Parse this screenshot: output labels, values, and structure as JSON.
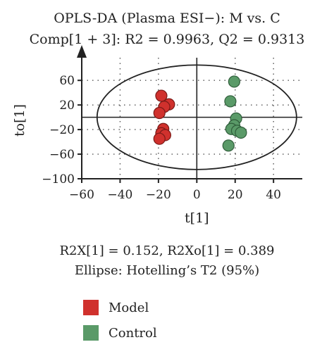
{
  "chart_data": {
    "type": "scatter",
    "title": "OPLS-DA (Plasma ESI−): M vs. C",
    "subtitle": "Comp[1 + 3]: R2 = 0.9963, Q2 = 0.9313",
    "xlabel": "t[1]",
    "ylabel": "to[1]",
    "xlim": [
      -60,
      55
    ],
    "ylim": [
      -100,
      90
    ],
    "x_ticks": [
      -60,
      -40,
      -20,
      0,
      20,
      40
    ],
    "x_tick_labels": [
      "−60",
      "−40",
      "−20",
      "0",
      "20",
      "40"
    ],
    "y_ticks": [
      60,
      20,
      -20,
      -60,
      -100
    ],
    "y_tick_labels": [
      "60",
      "20",
      "−20",
      "−60",
      "−100"
    ],
    "grid": true,
    "ellipse": {
      "label": "Ellipse: Hotelling’s T2 (95%)",
      "center": [
        0,
        0
      ],
      "rx": 52,
      "ry": 85
    },
    "stats_line": "R2X[1] = 0.152, R2Xo[1] = 0.389",
    "series": [
      {
        "name": "Model",
        "color": "#d0312d",
        "x": [
          -18.5,
          -14.5,
          -17,
          -19.5,
          -17.5,
          -18.5,
          -16.5,
          -19.5
        ],
        "y": [
          35,
          21,
          17,
          7,
          -19,
          -26,
          -29,
          -35
        ]
      },
      {
        "name": "Control",
        "color": "#5a9a68",
        "x": [
          19.5,
          17.5,
          20.5,
          19.5,
          18,
          21,
          23,
          16.5
        ],
        "y": [
          58,
          26,
          -2,
          -13,
          -19,
          -22,
          -25,
          -46
        ]
      }
    ],
    "legend_position": "bottom-left"
  }
}
